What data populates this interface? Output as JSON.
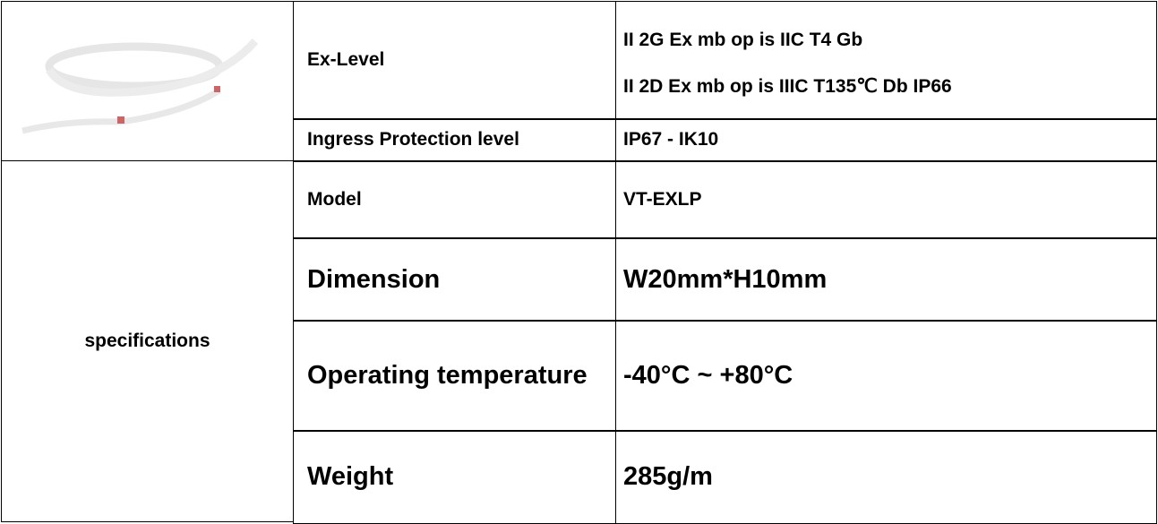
{
  "table": {
    "section_label": "specifications",
    "rows": [
      {
        "label": "Ex-Level",
        "value": [
          "II 2G Ex mb op is IIC T4 Gb",
          "II 2D Ex mb op is IIIC T135℃ Db IP66"
        ]
      },
      {
        "label": "Ingress Protection level",
        "value": [
          "IP67 - IK10"
        ]
      },
      {
        "label": "Model",
        "value": [
          "VT-EXLP"
        ]
      },
      {
        "label": "Dimension",
        "value": [
          "W20mm*H10mm"
        ]
      },
      {
        "label": "Operating temperature",
        "value": [
          "-40°C ~ +80°C"
        ]
      },
      {
        "label": "Weight",
        "value": [
          "285g/m"
        ]
      }
    ]
  }
}
